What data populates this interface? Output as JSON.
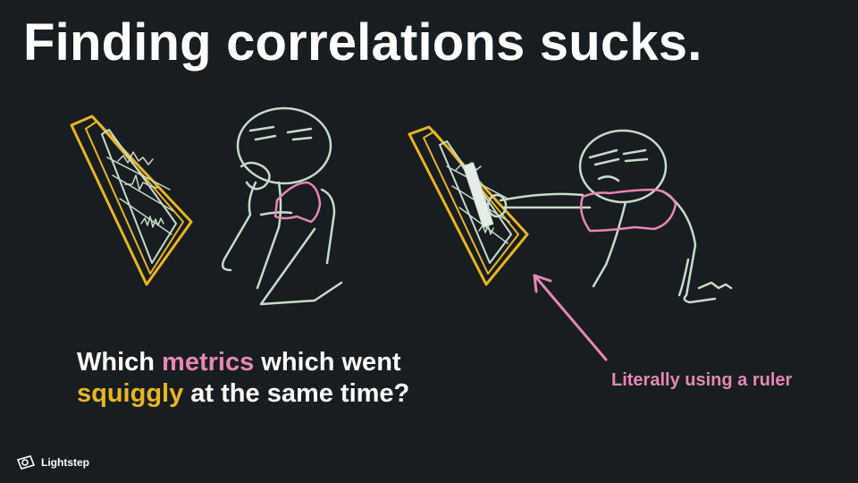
{
  "slide": {
    "title": "Finding correlations sucks.",
    "question": {
      "part1": "Which ",
      "highlight1": "metrics",
      "part2": " which went",
      "highlight2": "squiggly",
      "part3": " at the same time?"
    },
    "annotation": "Literally using a ruler",
    "brand": "Lightstep"
  },
  "colors": {
    "background": "#171d21",
    "pink": "#e886b6",
    "yellow": "#e9b521",
    "sketch": "#c7dcc9"
  },
  "icons": {
    "brand_logo": "lightstep-logo-icon"
  }
}
